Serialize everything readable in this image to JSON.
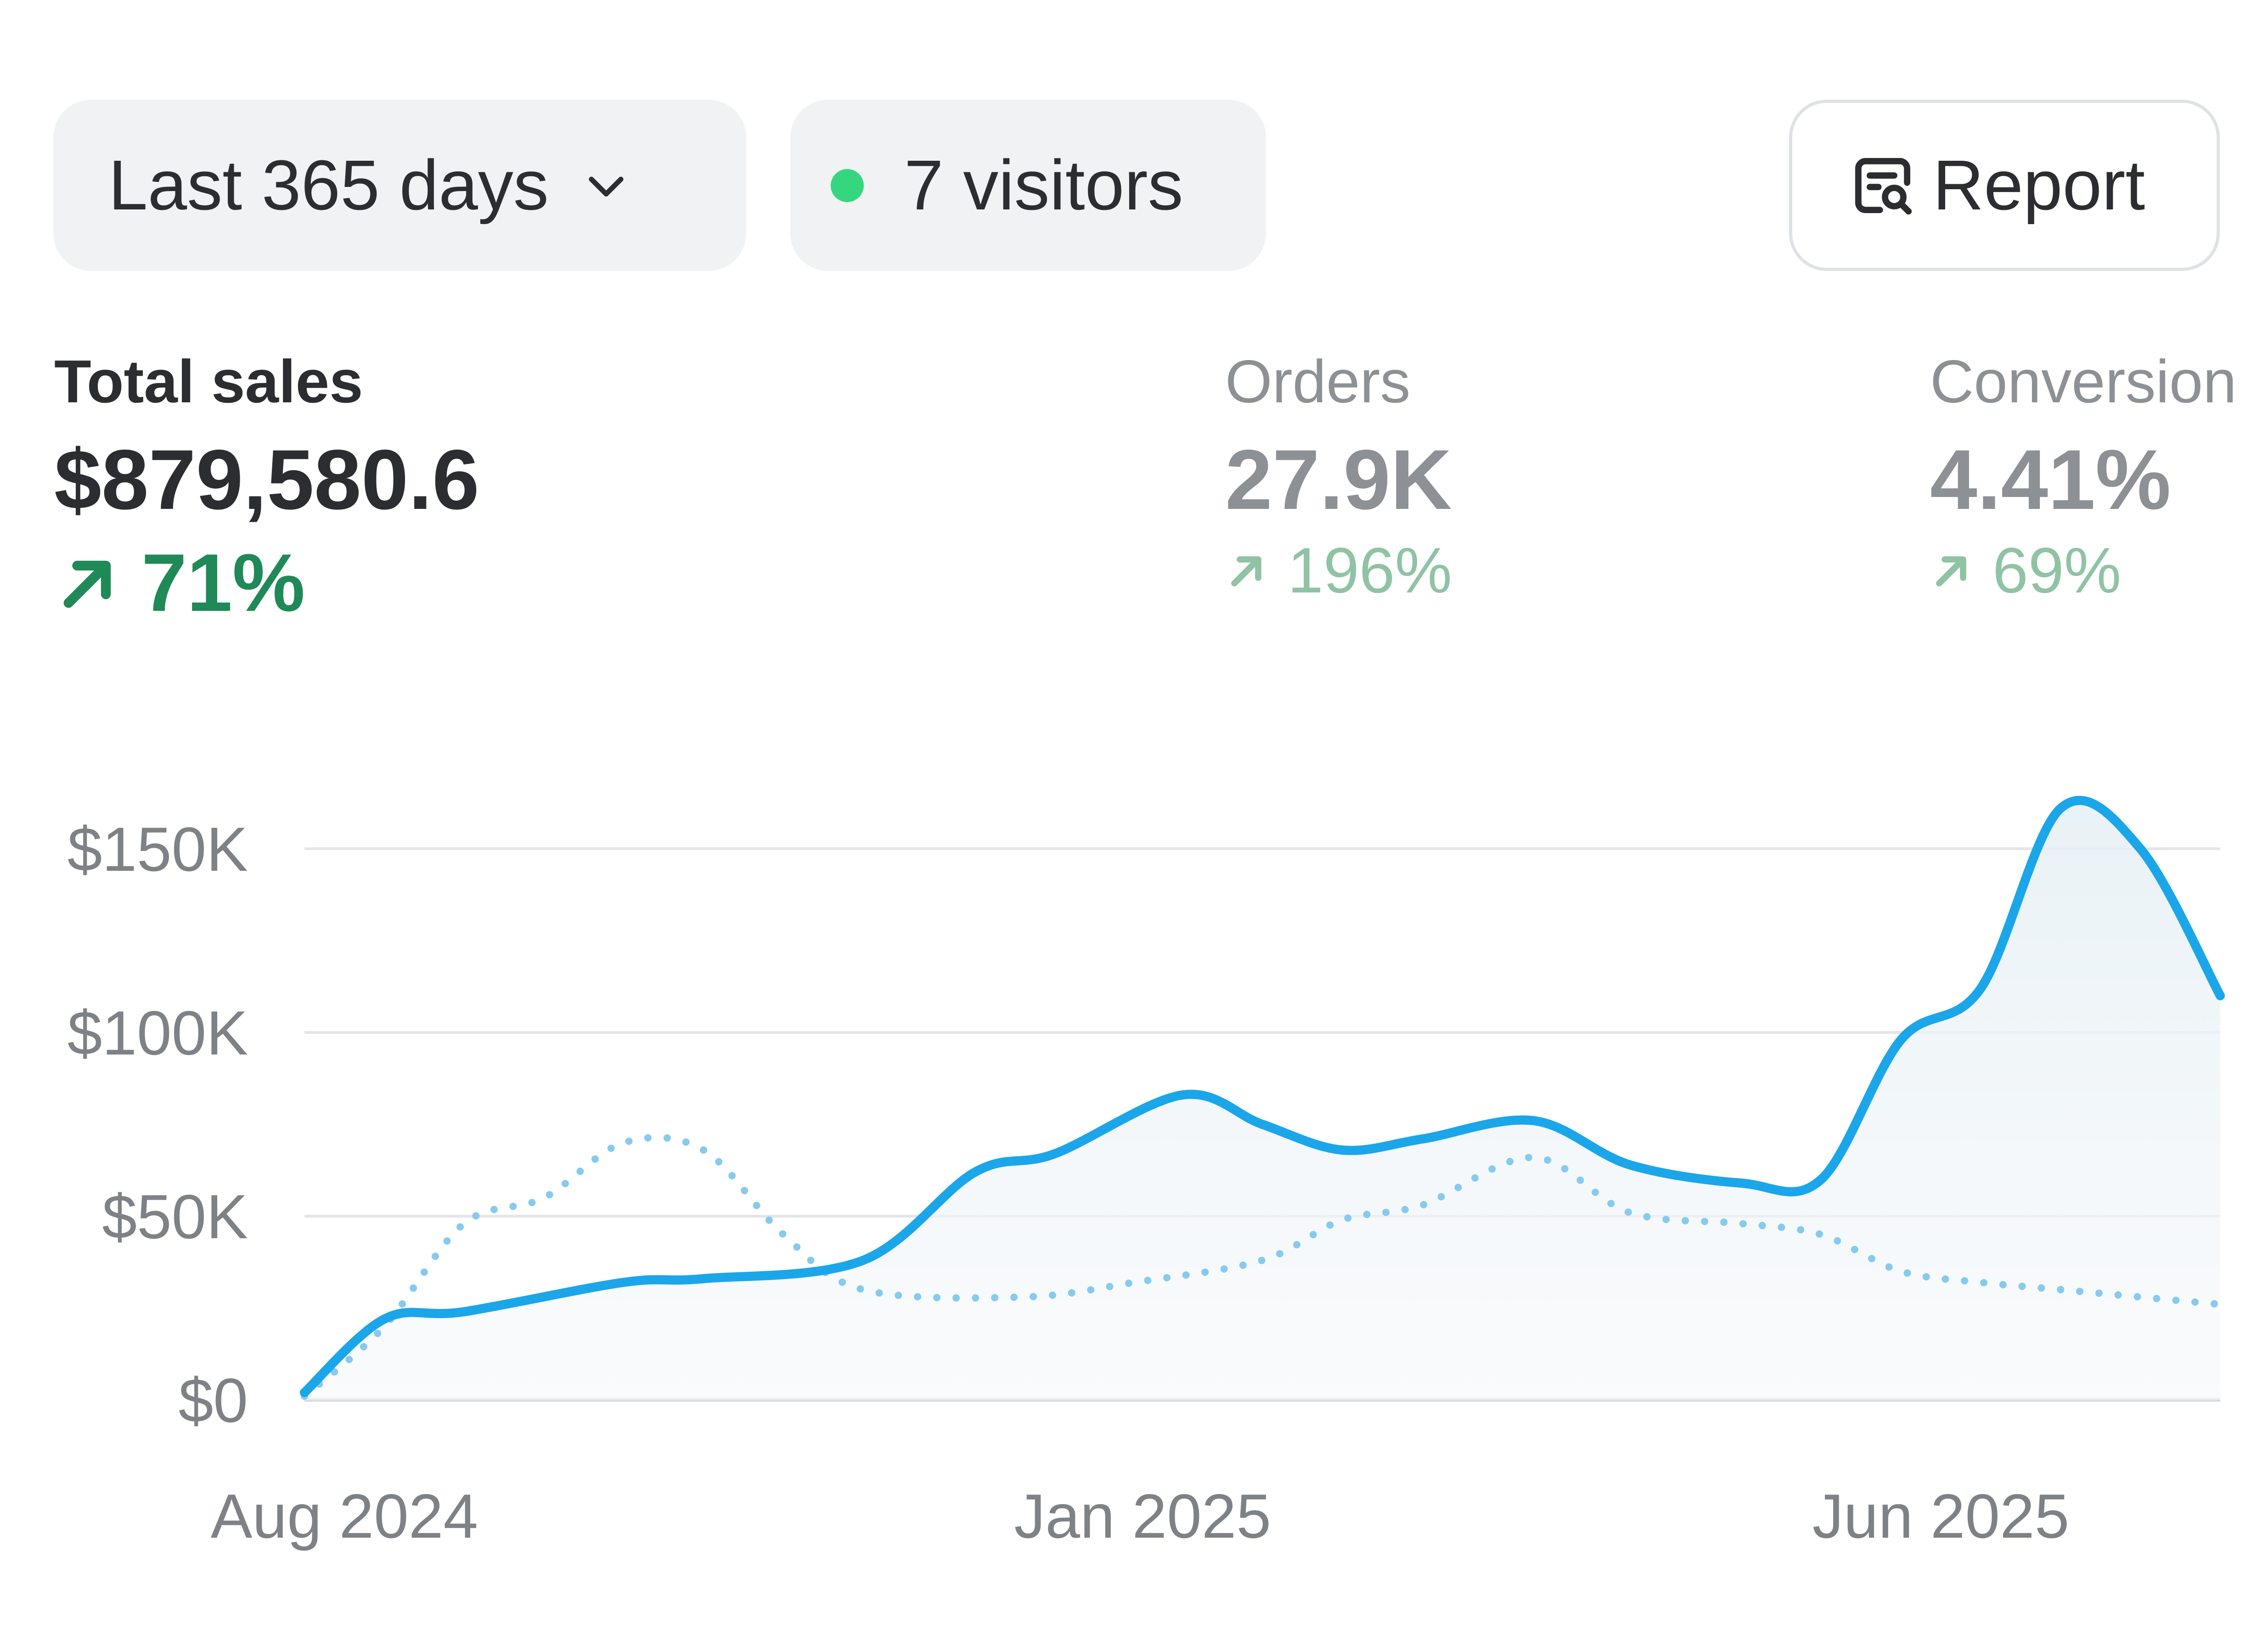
{
  "toolbar": {
    "range_label": "Last 365 days",
    "visitors_label": "7 visitors",
    "report_label": "Report"
  },
  "metrics": {
    "total_sales": {
      "label": "Total sales",
      "value": "$879,580.6",
      "change": "71%"
    },
    "orders": {
      "label": "Orders",
      "value": "27.9K",
      "change": "196%"
    },
    "conversion": {
      "label": "Conversion",
      "value": "4.41%",
      "change": "69%"
    }
  },
  "colors": {
    "current_line": "#1ba6ea",
    "previous_line": "#86cbed",
    "positive_change": "#1f8a57",
    "live_dot": "#36d67e"
  },
  "icons": {
    "range": "chevron-down-icon",
    "visitors": "live-dot-icon",
    "report": "report-search-icon",
    "change": "arrow-up-right-icon"
  },
  "chart_data": {
    "type": "line",
    "y_ticks": [
      "$0",
      "$50K",
      "$100K",
      "$150K"
    ],
    "x_ticks": [
      "Aug 2024",
      "Jan 2025",
      "Jun 2025"
    ],
    "x_tick_positions": [
      0.25,
      5.25,
      10.25
    ],
    "ylim": [
      0,
      150000
    ],
    "xlim": [
      0,
      12
    ],
    "grid": true,
    "series": [
      {
        "style": "solid",
        "x": [
          0,
          0.5,
          1,
          2,
          2.5,
          3.5,
          4.2,
          4.7,
          5.5,
          6,
          6.5,
          7,
          7.7,
          8.3,
          9,
          9.5,
          10,
          10.5,
          11,
          11.5,
          12
        ],
        "values": [
          2000,
          22000,
          24000,
          32000,
          33000,
          38000,
          62000,
          67000,
          83000,
          75000,
          68000,
          71000,
          76000,
          64000,
          59000,
          60000,
          98000,
          112000,
          161000,
          150000,
          110000
        ]
      },
      {
        "style": "dotted",
        "x": [
          0,
          0.5,
          1,
          1.5,
          2,
          2.5,
          3,
          3.5,
          4.5,
          5.2,
          6,
          6.5,
          7,
          7.7,
          8.3,
          9,
          9.5,
          10,
          10.5,
          11,
          12
        ],
        "values": [
          1000,
          20000,
          48000,
          55000,
          70000,
          68000,
          45000,
          30000,
          28000,
          32000,
          38000,
          49000,
          53000,
          66000,
          51000,
          48000,
          45000,
          35000,
          32000,
          30000,
          26000
        ]
      }
    ]
  }
}
